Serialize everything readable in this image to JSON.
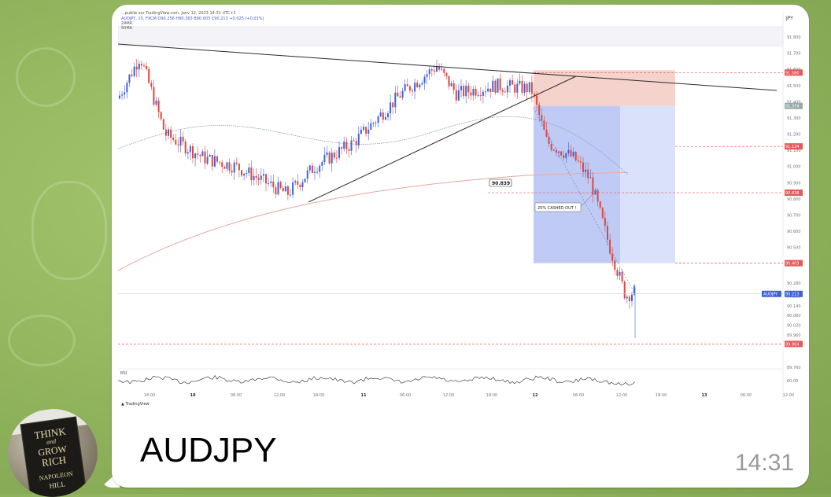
{
  "message": {
    "caption": "AUDJPY",
    "time": "14:31"
  },
  "avatar": {
    "book_lines": [
      "THINK",
      "and",
      "GROW",
      "RICH",
      "NAPOLEON",
      "HILL"
    ]
  },
  "chart": {
    "publisher_line": "...publié sur TradingView.com, Janv 12, 2023 14:31 UTC+1",
    "ohlc_line": "AUDJPY, 15, FXCM O90.256 H90.363 B90.003 C90.213 +0.025 (+0.03%)",
    "indicators": [
      "24MA",
      "50MA"
    ],
    "currency": "JPY",
    "symbol": "AUDJPY",
    "current_price": "90.213",
    "label_9083": "90.839",
    "cashed_label": "25% CASHED OUT !",
    "rsi_label": "RSI",
    "rsi_value": "60.00",
    "brand": "TradingView",
    "price_ticks": [
      "91.800",
      "91.700",
      "91.600",
      "91.500",
      "91.400",
      "91.300",
      "91.200",
      "91.100",
      "91.000",
      "90.900",
      "90.800",
      "90.700",
      "90.600",
      "90.500",
      "90.400",
      "90.280",
      "90.200",
      "90.140",
      "90.080",
      "90.020",
      "89.960",
      "89.900",
      "89.760"
    ],
    "level_labels": [
      "91.580",
      "91.374",
      "91.124",
      "90.838",
      "90.403",
      "89.904"
    ],
    "time_ticks": [
      "18:00",
      "10",
      "06:00",
      "12:00",
      "18:00",
      "11",
      "06:00",
      "12:00",
      "18:00",
      "12",
      "06:00",
      "12:00",
      "18:00",
      "13",
      "06:00",
      "12:00"
    ],
    "colors": {
      "bull": "#3f62d8",
      "bear": "#e0453f",
      "stop": "#f4c7c0",
      "target": "#a9b9f2",
      "target_light": "#d4ddfa"
    }
  }
}
